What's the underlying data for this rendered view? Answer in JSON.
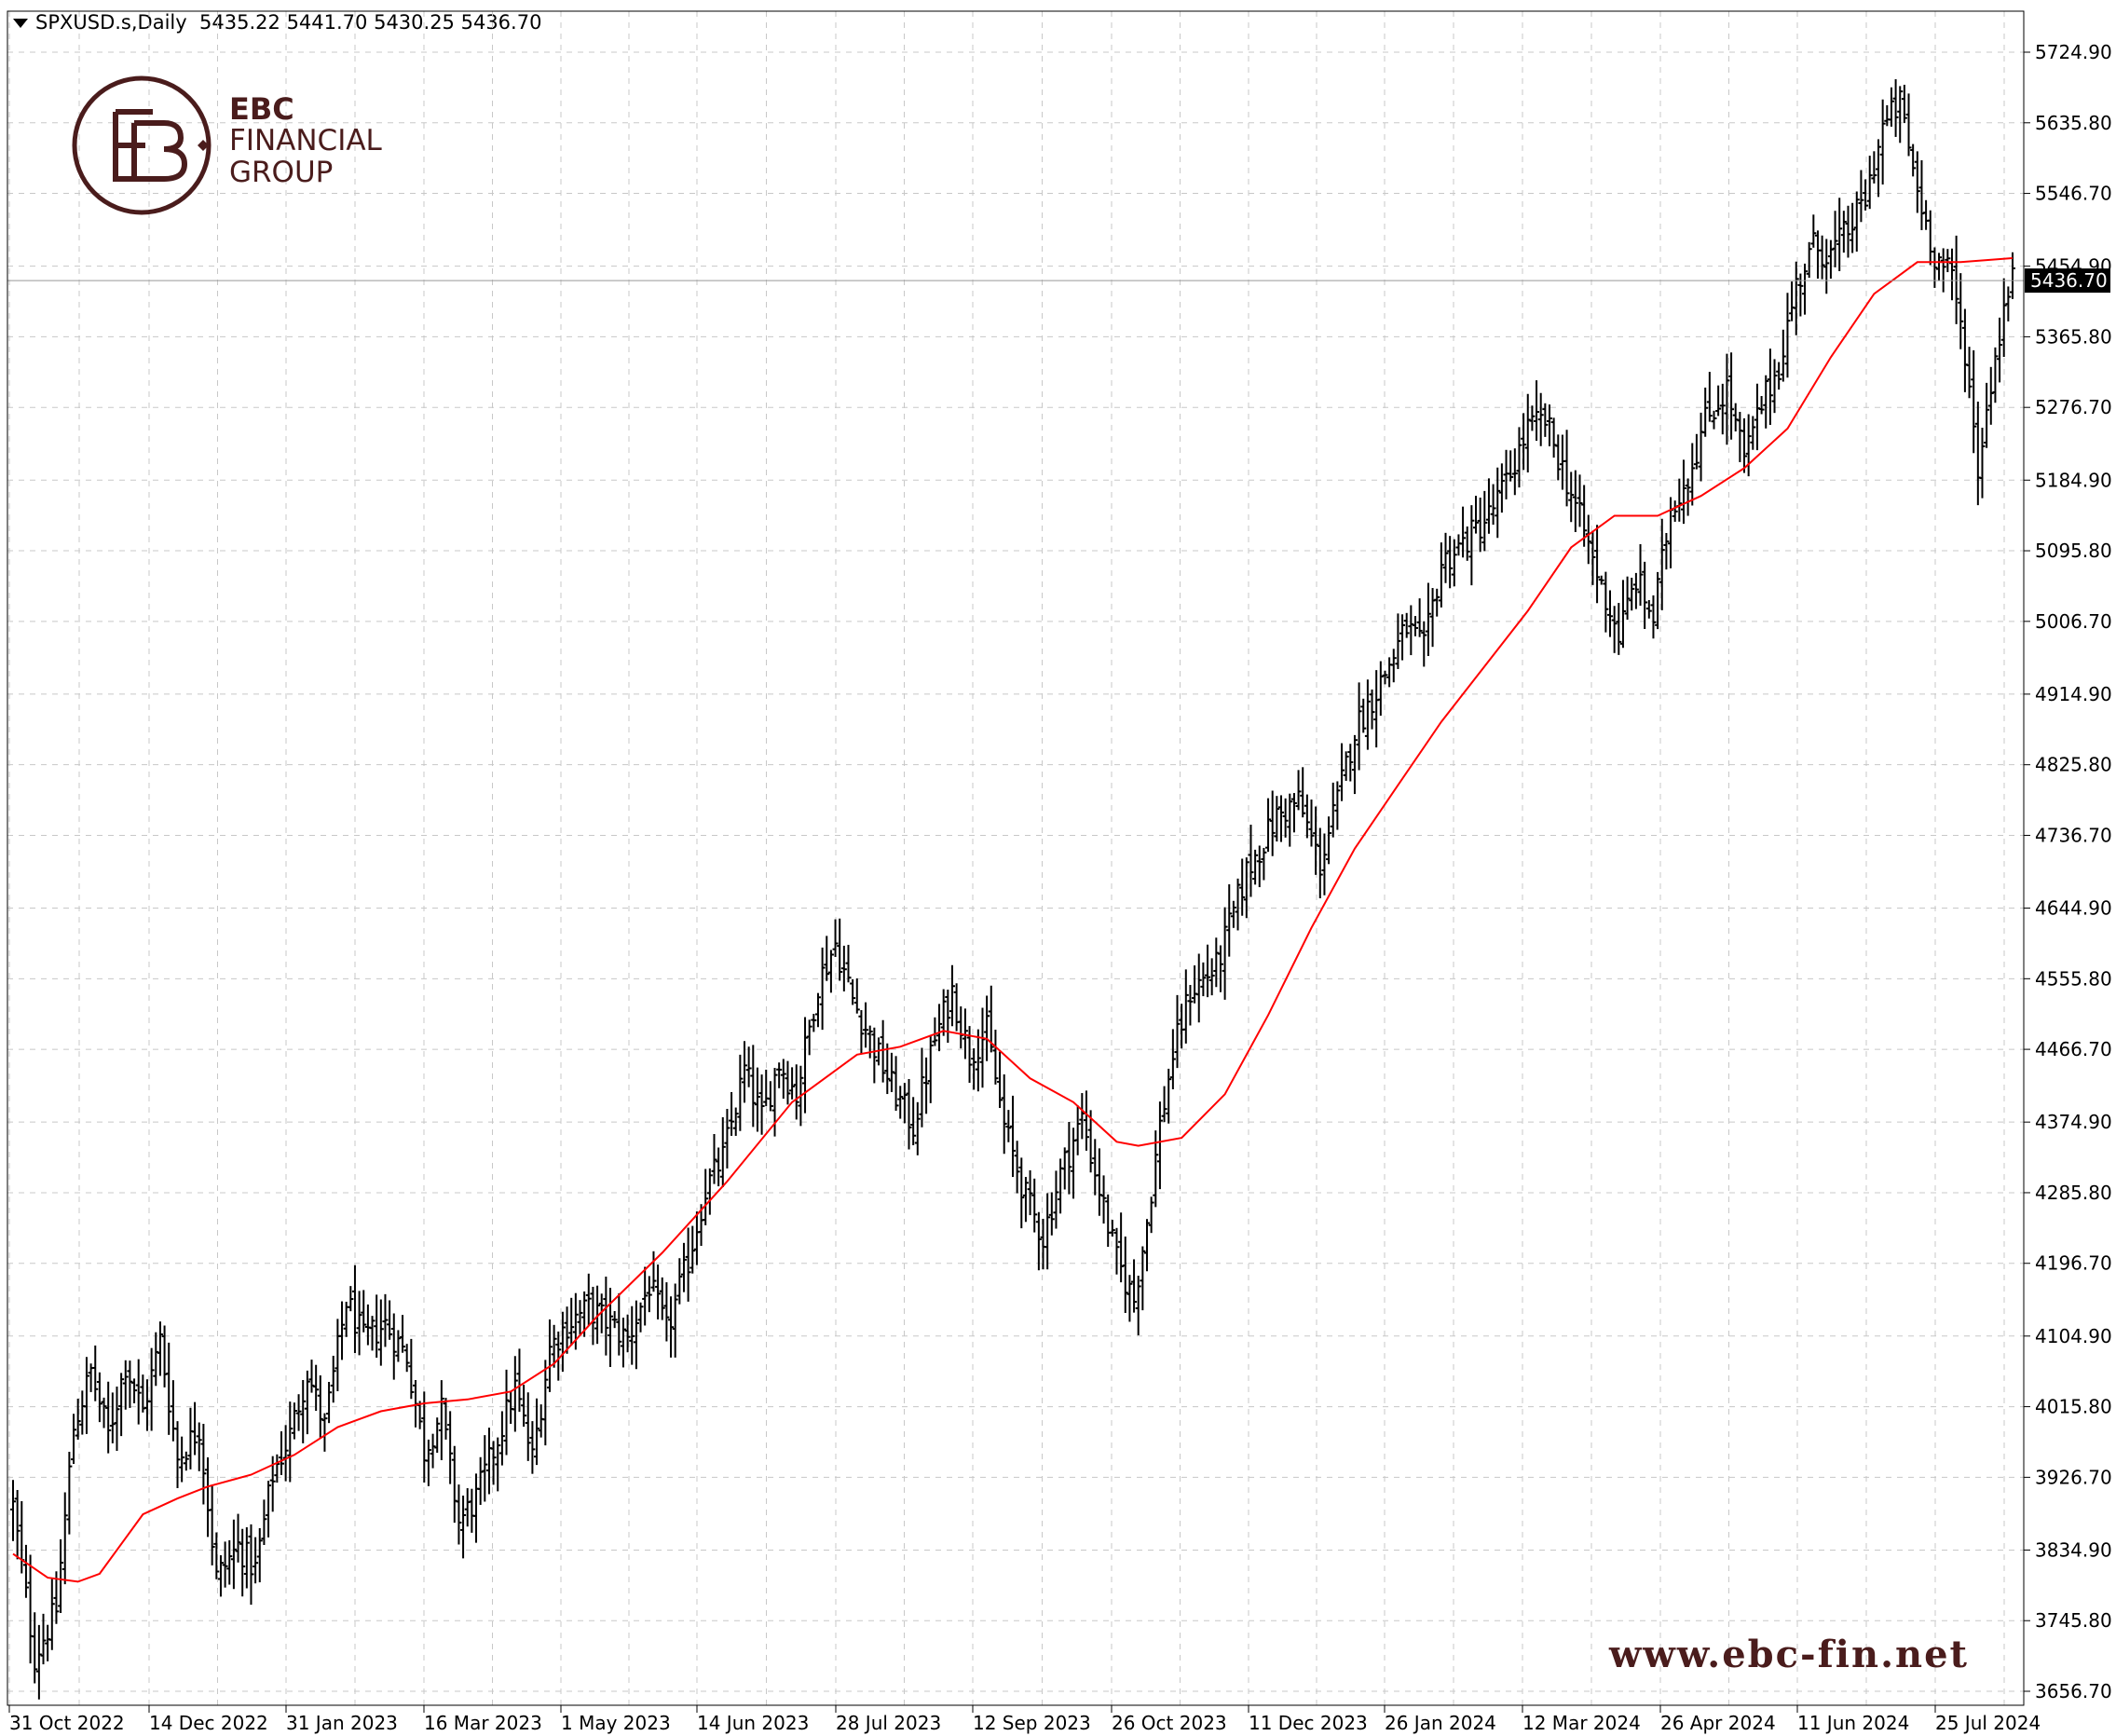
{
  "header": {
    "symbol": "SPXUSD.s,Daily",
    "ohlc": "5435.22 5441.70 5430.25 5436.70"
  },
  "logo": {
    "line1": "EBC",
    "line2": "FINANCIAL",
    "line3": "GROUP",
    "icon": "ebc-monogram-icon"
  },
  "website": "www.ebc-fin.net",
  "colors": {
    "bars": "#000000",
    "ma": "#ff0000",
    "grid": "#c8c8c8",
    "brand": "#4a1c1c",
    "price_label_bg": "#000000"
  },
  "chart_data": {
    "type": "ohlc-bar",
    "series": [
      {
        "name": "SPXUSD.s,Daily",
        "kind": "ohlc"
      },
      {
        "kind": "moving-average"
      }
    ],
    "current_price": "5436.70",
    "y_ticks": [
      "5724.90",
      "5635.80",
      "5546.70",
      "5454.90",
      "5365.80",
      "5276.70",
      "5184.90",
      "5095.80",
      "5006.70",
      "4914.90",
      "4825.80",
      "4736.70",
      "4644.90",
      "4555.80",
      "4466.70",
      "4374.90",
      "4285.80",
      "4196.70",
      "4104.90",
      "4015.80",
      "3926.70",
      "3834.90",
      "3745.80",
      "3656.70"
    ],
    "x_ticks": [
      "31 Oct 2022",
      "14 Dec 2022",
      "31 Jan 2023",
      "16 Mar 2023",
      "1 May 2023",
      "14 Jun 2023",
      "28 Jul 2023",
      "12 Sep 2023",
      "26 Oct 2023",
      "11 Dec 2023",
      "26 Jan 2024",
      "12 Mar 2024",
      "26 Apr 2024",
      "11 Jun 2024",
      "25 Jul 2024"
    ],
    "ylim": [
      3646,
      5760
    ],
    "close_path": [
      [
        0,
        3890
      ],
      [
        5,
        3700
      ],
      [
        10,
        3760
      ],
      [
        14,
        3990
      ],
      [
        18,
        4060
      ],
      [
        22,
        3980
      ],
      [
        26,
        4070
      ],
      [
        30,
        4010
      ],
      [
        34,
        4100
      ],
      [
        38,
        3950
      ],
      [
        43,
        3990
      ],
      [
        47,
        3800
      ],
      [
        52,
        3840
      ],
      [
        56,
        3810
      ],
      [
        60,
        3930
      ],
      [
        64,
        3980
      ],
      [
        68,
        4060
      ],
      [
        72,
        3990
      ],
      [
        77,
        4150
      ],
      [
        81,
        4100
      ],
      [
        86,
        4120
      ],
      [
        91,
        4080
      ],
      [
        95,
        3960
      ],
      [
        99,
        4010
      ],
      [
        103,
        3870
      ],
      [
        107,
        3900
      ],
      [
        111,
        3960
      ],
      [
        116,
        4040
      ],
      [
        120,
        3950
      ],
      [
        124,
        4090
      ],
      [
        128,
        4120
      ],
      [
        133,
        4140
      ],
      [
        138,
        4120
      ],
      [
        142,
        4100
      ],
      [
        147,
        4170
      ],
      [
        151,
        4110
      ],
      [
        156,
        4200
      ],
      [
        160,
        4290
      ],
      [
        164,
        4330
      ],
      [
        169,
        4440
      ],
      [
        173,
        4380
      ],
      [
        177,
        4450
      ],
      [
        181,
        4410
      ],
      [
        186,
        4550
      ],
      [
        190,
        4600
      ],
      [
        194,
        4530
      ],
      [
        199,
        4470
      ],
      [
        203,
        4420
      ],
      [
        208,
        4370
      ],
      [
        213,
        4480
      ],
      [
        217,
        4540
      ],
      [
        221,
        4460
      ],
      [
        225,
        4490
      ],
      [
        229,
        4370
      ],
      [
        234,
        4280
      ],
      [
        238,
        4230
      ],
      [
        242,
        4310
      ],
      [
        247,
        4380
      ],
      [
        251,
        4290
      ],
      [
        255,
        4200
      ],
      [
        259,
        4150
      ],
      [
        262,
        4250
      ],
      [
        265,
        4370
      ],
      [
        268,
        4460
      ],
      [
        272,
        4540
      ],
      [
        278,
        4570
      ],
      [
        285,
        4690
      ],
      [
        292,
        4760
      ],
      [
        297,
        4780
      ],
      [
        302,
        4700
      ],
      [
        306,
        4780
      ],
      [
        310,
        4870
      ],
      [
        316,
        4930
      ],
      [
        322,
        5000
      ],
      [
        326,
        4970
      ],
      [
        330,
        5080
      ],
      [
        336,
        5110
      ],
      [
        341,
        5140
      ],
      [
        345,
        5180
      ],
      [
        350,
        5250
      ],
      [
        354,
        5260
      ],
      [
        358,
        5200
      ],
      [
        363,
        5120
      ],
      [
        367,
        5050
      ],
      [
        371,
        4990
      ],
      [
        375,
        5060
      ],
      [
        379,
        5010
      ],
      [
        383,
        5150
      ],
      [
        387,
        5190
      ],
      [
        391,
        5260
      ],
      [
        396,
        5300
      ],
      [
        400,
        5210
      ],
      [
        404,
        5280
      ],
      [
        408,
        5330
      ],
      [
        412,
        5430
      ],
      [
        416,
        5480
      ],
      [
        420,
        5470
      ],
      [
        424,
        5500
      ],
      [
        428,
        5540
      ],
      [
        432,
        5630
      ],
      [
        436,
        5660
      ],
      [
        440,
        5550
      ],
      [
        444,
        5470
      ],
      [
        448,
        5440
      ],
      [
        451,
        5350
      ],
      [
        454,
        5200
      ],
      [
        457,
        5310
      ],
      [
        460,
        5400
      ],
      [
        462,
        5436
      ]
    ],
    "ma_path": [
      [
        0,
        3830
      ],
      [
        8,
        3800
      ],
      [
        15,
        3795
      ],
      [
        20,
        3805
      ],
      [
        30,
        3880
      ],
      [
        38,
        3900
      ],
      [
        45,
        3915
      ],
      [
        55,
        3930
      ],
      [
        65,
        3955
      ],
      [
        75,
        3990
      ],
      [
        85,
        4010
      ],
      [
        95,
        4020
      ],
      [
        105,
        4025
      ],
      [
        115,
        4035
      ],
      [
        125,
        4070
      ],
      [
        135,
        4130
      ],
      [
        150,
        4210
      ],
      [
        165,
        4300
      ],
      [
        180,
        4400
      ],
      [
        195,
        4460
      ],
      [
        205,
        4470
      ],
      [
        215,
        4490
      ],
      [
        225,
        4480
      ],
      [
        235,
        4430
      ],
      [
        245,
        4400
      ],
      [
        255,
        4350
      ],
      [
        260,
        4345
      ],
      [
        270,
        4355
      ],
      [
        280,
        4410
      ],
      [
        290,
        4510
      ],
      [
        300,
        4620
      ],
      [
        310,
        4720
      ],
      [
        320,
        4800
      ],
      [
        330,
        4880
      ],
      [
        340,
        4950
      ],
      [
        350,
        5020
      ],
      [
        360,
        5100
      ],
      [
        370,
        5140
      ],
      [
        380,
        5140
      ],
      [
        390,
        5165
      ],
      [
        400,
        5200
      ],
      [
        410,
        5250
      ],
      [
        420,
        5340
      ],
      [
        430,
        5420
      ],
      [
        440,
        5460
      ],
      [
        450,
        5460
      ],
      [
        462,
        5465
      ]
    ],
    "bar_count": 463
  }
}
